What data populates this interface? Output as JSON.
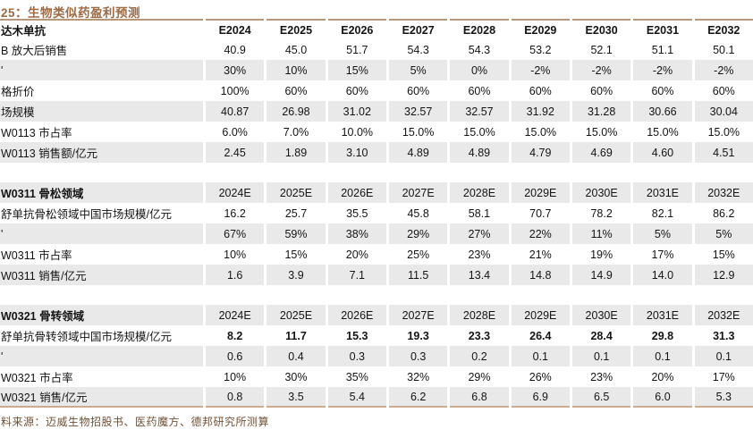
{
  "title": "25：生物类似药盈利预测",
  "footer": "料来源：迈威生物招股书、医药魔方、德邦研究所测算",
  "colors": {
    "title_text": "#9c6a45",
    "footer_text": "#6f5238",
    "top_border": "#b5977a",
    "bottom_border": "#c9ac90",
    "row_stripe": "#e9e9e9"
  },
  "table": {
    "sections": [
      {
        "name": "adalimumab",
        "header_label": "达木单抗",
        "header_shaded": false,
        "header_bold_years": true,
        "year_cols": [
          "E2024",
          "E2025",
          "E2026",
          "E2027",
          "E2028",
          "E2029",
          "E2030",
          "E2031",
          "E2032"
        ],
        "rows": [
          {
            "label": "B 放大后销售",
            "values": [
              "40.9",
              "45.0",
              "51.7",
              "54.3",
              "54.3",
              "53.2",
              "52.1",
              "51.1",
              "50.1"
            ]
          },
          {
            "label": "'",
            "values": [
              "30%",
              "10%",
              "15%",
              "5%",
              "0%",
              "-2%",
              "-2%",
              "-2%",
              "-2%"
            ]
          },
          {
            "label": "格折价",
            "values": [
              "100%",
              "60%",
              "60%",
              "60%",
              "60%",
              "60%",
              "60%",
              "60%",
              "60%"
            ]
          },
          {
            "label": "场规模",
            "values": [
              "40.87",
              "26.98",
              "31.02",
              "32.57",
              "32.57",
              "31.92",
              "31.28",
              "30.66",
              "30.04"
            ]
          },
          {
            "label": "W0113 市占率",
            "values": [
              "6.0%",
              "7.0%",
              "10.0%",
              "15.0%",
              "15.0%",
              "15.0%",
              "15.0%",
              "15.0%",
              "15.0%"
            ]
          },
          {
            "label": "W0113 销售额/亿元",
            "values": [
              "2.45",
              "1.89",
              "3.10",
              "4.89",
              "4.89",
              "4.79",
              "4.69",
              "4.60",
              "4.51"
            ]
          }
        ]
      },
      {
        "name": "w0311-osteoporosis",
        "header_label": "W0311 骨松领域",
        "header_shaded": true,
        "header_bold_years": false,
        "year_cols": [
          "2024E",
          "2025E",
          "2026E",
          "2027E",
          "2028E",
          "2029E",
          "2030E",
          "2031E",
          "2032E"
        ],
        "rows": [
          {
            "label": "舒单抗骨松领域中国市场规模/亿元",
            "values": [
              "16.2",
              "25.7",
              "35.5",
              "45.8",
              "58.1",
              "70.7",
              "78.2",
              "82.1",
              "86.2"
            ]
          },
          {
            "label": "'",
            "values": [
              "67%",
              "59%",
              "38%",
              "29%",
              "27%",
              "22%",
              "11%",
              "5%",
              "5%"
            ]
          },
          {
            "label": "W0311 市占率",
            "values": [
              "10%",
              "15%",
              "20%",
              "25%",
              "23%",
              "21%",
              "19%",
              "17%",
              "15%"
            ]
          },
          {
            "label": "W0311 销售/亿元",
            "values": [
              "1.6",
              "3.9",
              "7.1",
              "11.5",
              "13.4",
              "14.8",
              "14.9",
              "14.0",
              "12.9"
            ]
          }
        ]
      },
      {
        "name": "w0321-bone-metastasis",
        "header_label": "W0321 骨转领域",
        "header_shaded": true,
        "header_bold_years": false,
        "year_cols": [
          "2024E",
          "2025E",
          "2026E",
          "2027E",
          "2028E",
          "2029E",
          "2030E",
          "2031E",
          "2032E"
        ],
        "rows": [
          {
            "label": "舒单抗骨转领域中国市场规模/亿元",
            "bold_values": true,
            "values": [
              "8.2",
              "11.7",
              "15.3",
              "19.3",
              "23.3",
              "26.4",
              "28.4",
              "29.8",
              "31.3"
            ]
          },
          {
            "label": "'",
            "values": [
              "0.6",
              "0.4",
              "0.3",
              "0.3",
              "0.2",
              "0.1",
              "0.1",
              "0.1",
              "0.1"
            ]
          },
          {
            "label": "W0321 市占率",
            "values": [
              "10%",
              "30%",
              "35%",
              "32%",
              "29%",
              "26%",
              "23%",
              "20%",
              "17%"
            ]
          },
          {
            "label": "W0321 销售/亿元",
            "values": [
              "0.8",
              "3.5",
              "5.4",
              "6.2",
              "6.8",
              "6.9",
              "6.5",
              "6.0",
              "5.3"
            ]
          }
        ]
      }
    ]
  }
}
